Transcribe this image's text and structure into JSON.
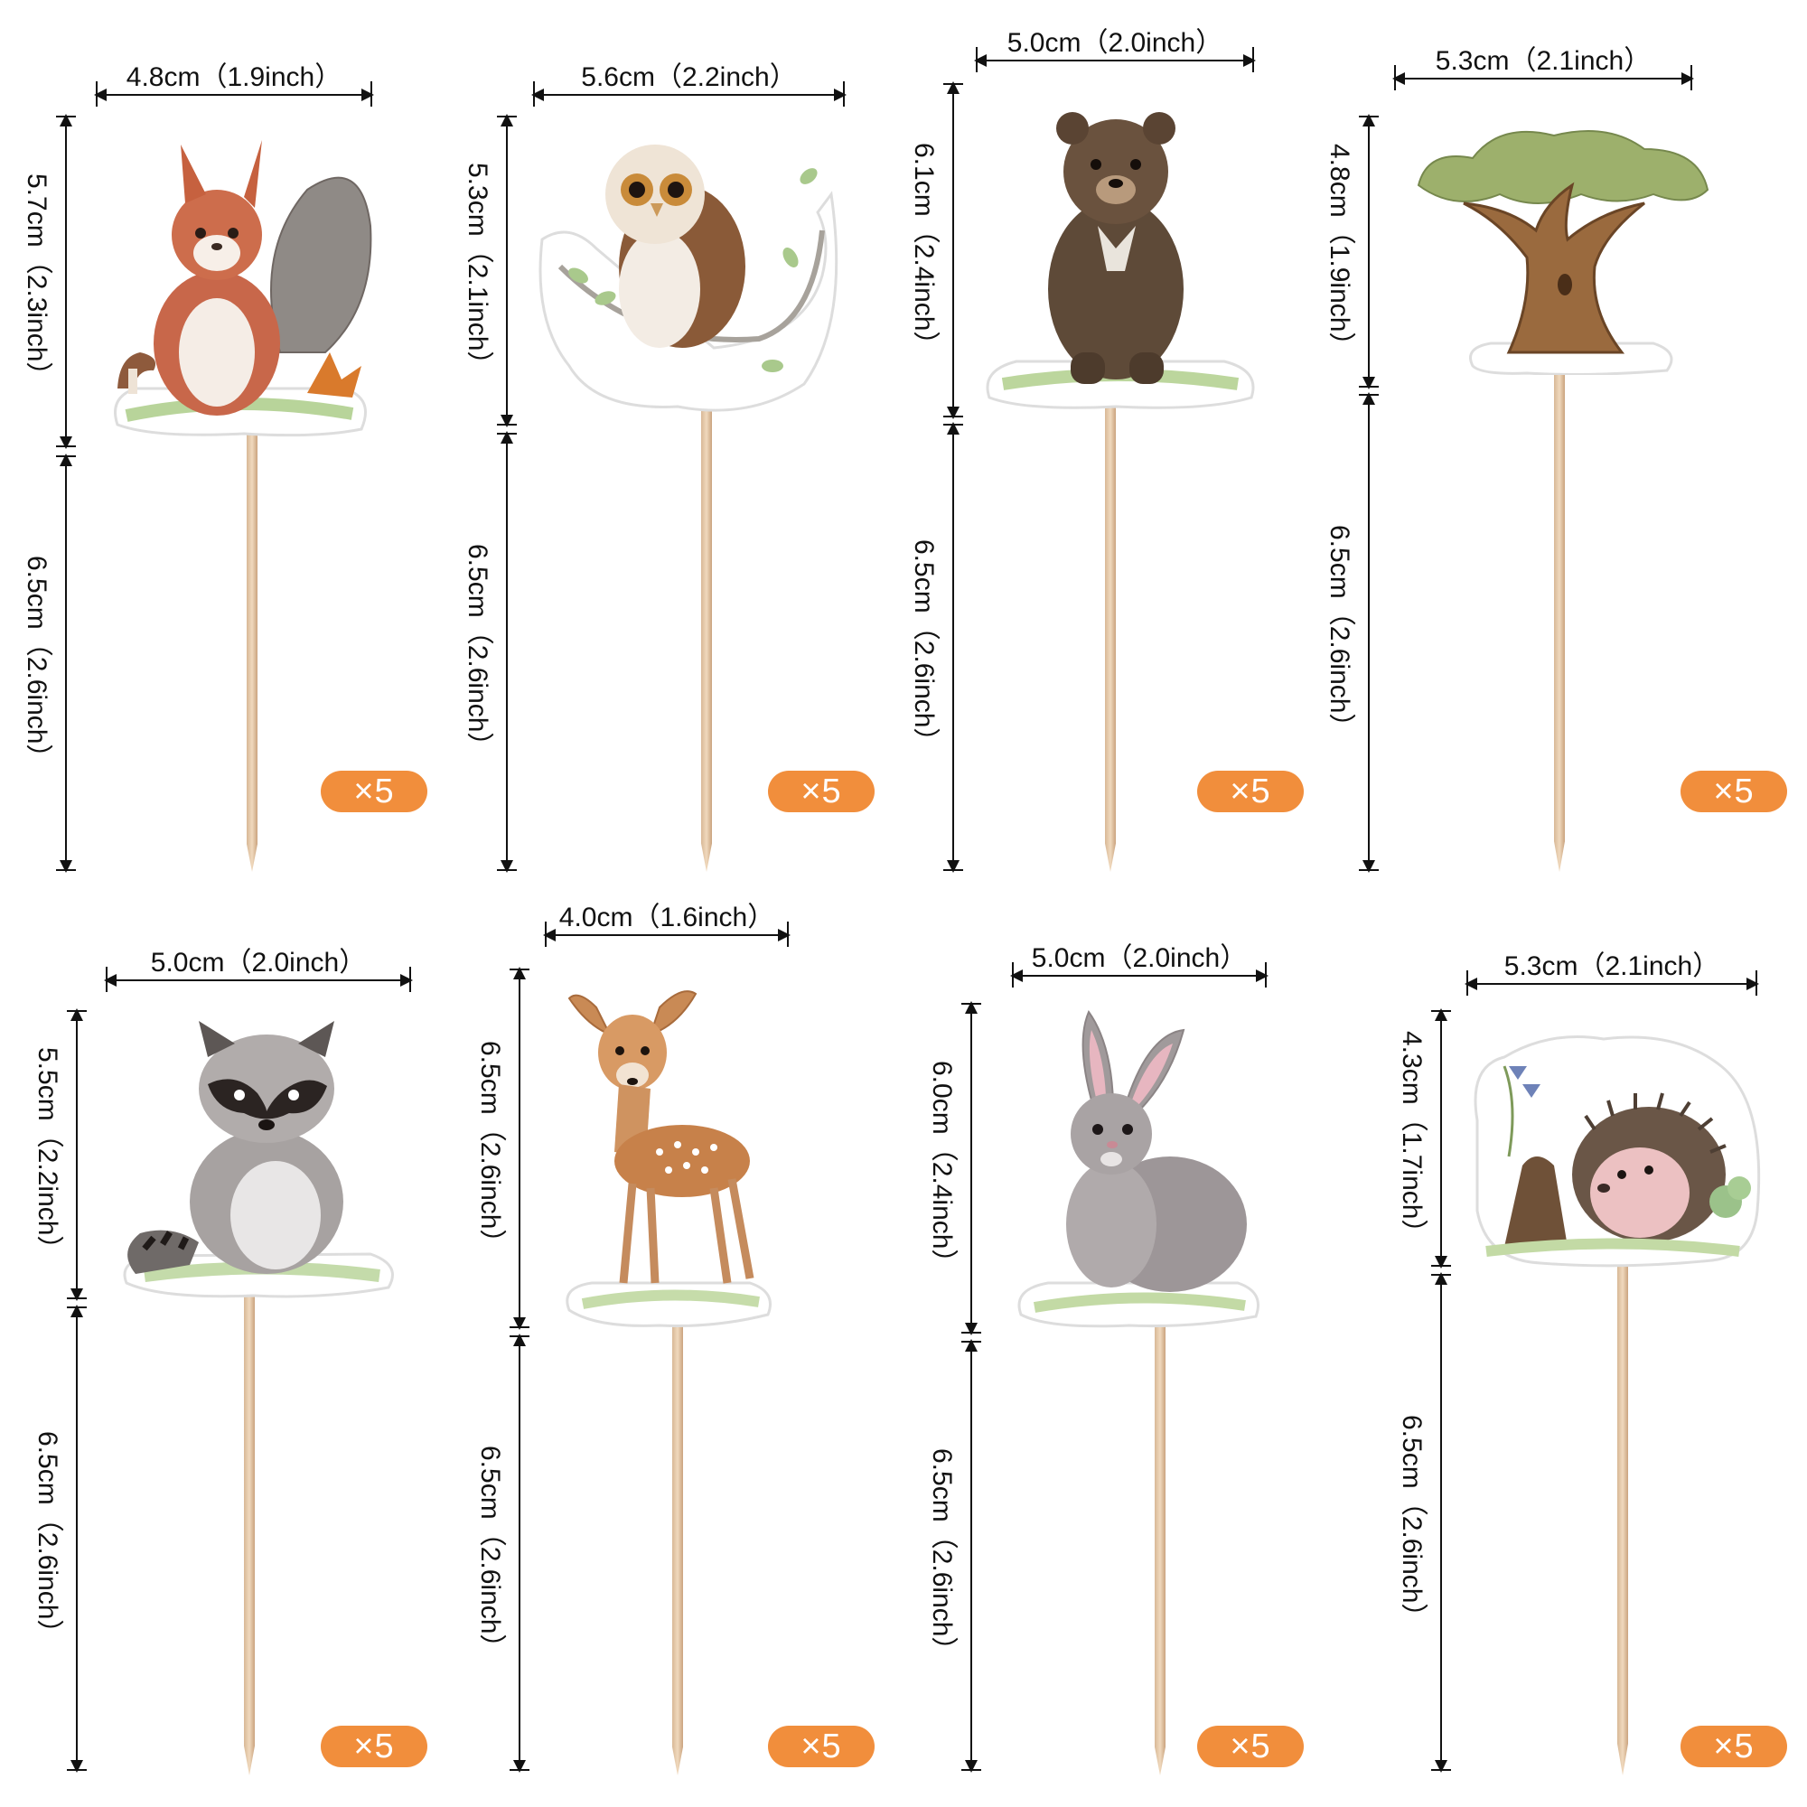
{
  "items": [
    {
      "name": "squirrel",
      "width_label": "4.8cm（1.9inch）",
      "height_label": "5.7cm（2.3inch）",
      "stick_label": "6.5cm（2.6inch）",
      "qty": "×5"
    },
    {
      "name": "owl",
      "width_label": "5.6cm（2.2inch）",
      "height_label": "5.3cm（2.1inch）",
      "stick_label": "6.5cm（2.6inch）",
      "qty": "×5"
    },
    {
      "name": "bear",
      "width_label": "5.0cm（2.0inch）",
      "height_label": "6.1cm（2.4inch）",
      "stick_label": "6.5cm（2.6inch）",
      "qty": "×5"
    },
    {
      "name": "tree",
      "width_label": "5.3cm（2.1inch）",
      "height_label": "4.8cm（1.9inch）",
      "stick_label": "6.5cm（2.6inch）",
      "qty": "×5"
    },
    {
      "name": "raccoon",
      "width_label": "5.0cm（2.0inch）",
      "height_label": "5.5cm（2.2inch）",
      "stick_label": "6.5cm（2.6inch）",
      "qty": "×5"
    },
    {
      "name": "deer",
      "width_label": "4.0cm（1.6inch）",
      "height_label": "6.5cm（2.6inch）",
      "stick_label": "6.5cm（2.6inch）",
      "qty": "×5"
    },
    {
      "name": "rabbit",
      "width_label": "5.0cm（2.0inch）",
      "height_label": "6.0cm（2.4inch）",
      "stick_label": "6.5cm（2.6inch）",
      "qty": "×5"
    },
    {
      "name": "hedgehog",
      "width_label": "5.3cm（2.1inch）",
      "height_label": "4.3cm（1.7inch）",
      "stick_label": "6.5cm（2.6inch）",
      "qty": "×5"
    }
  ],
  "colors": {
    "badge": "#f18e3c",
    "stick": "#e6c9a8",
    "ground": "#c9dca6"
  }
}
